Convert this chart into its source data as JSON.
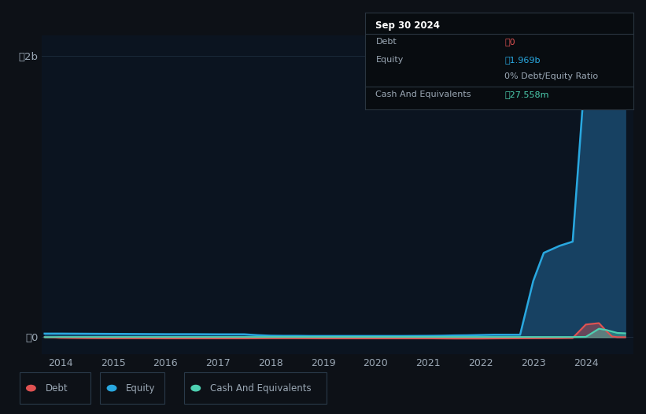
{
  "bg_color": "#0d1117",
  "plot_bg_color": "#0b1420",
  "grid_color": "#1e2d3d",
  "text_color": "#9ba8b5",
  "debt_color": "#e05252",
  "equity_color": "#29a8e0",
  "cash_color": "#4dd0b1",
  "equity_fill_color": "#1a4a6e",
  "ylim_min": -120000000.0,
  "ylim_max": 2150000000.0,
  "ytick_0_label": "⃴0",
  "ytick_2b_label": "⃴2b",
  "tooltip": {
    "date": "Sep 30 2024",
    "debt_label": "Debt",
    "debt_value": "⃴0",
    "equity_label": "Equity",
    "equity_value": "⃴1.969b",
    "ratio_value": "0% Debt/Equity Ratio",
    "cash_label": "Cash And Equivalents",
    "cash_value": "⃴27.558m"
  },
  "legend": [
    {
      "label": "Debt",
      "color": "#e05252"
    },
    {
      "label": "Equity",
      "color": "#29a8e0"
    },
    {
      "label": "Cash And Equivalents",
      "color": "#4dd0b1"
    }
  ],
  "equity_x": [
    2013.7,
    2014.0,
    2014.5,
    2015.0,
    2015.5,
    2016.0,
    2016.5,
    2017.0,
    2017.5,
    2017.75,
    2018.0,
    2018.25,
    2018.5,
    2018.75,
    2019.0,
    2019.5,
    2020.0,
    2020.5,
    2021.0,
    2021.25,
    2021.5,
    2021.75,
    2022.0,
    2022.25,
    2022.5,
    2022.75,
    2023.0,
    2023.1,
    2023.2,
    2023.5,
    2023.75,
    2024.0,
    2024.25,
    2024.5,
    2024.6,
    2024.75
  ],
  "equity_y": [
    25000000.0,
    25000000.0,
    24000000.0,
    23000000.0,
    22000000.0,
    21000000.0,
    21000000.0,
    20000000.0,
    20000000.0,
    14000000.0,
    10000000.0,
    9000000.0,
    9000000.0,
    8000000.0,
    8000000.0,
    8000000.0,
    8000000.0,
    8000000.0,
    9000000.0,
    10000000.0,
    12000000.0,
    13000000.0,
    15000000.0,
    17000000.0,
    17000000.0,
    17000000.0,
    400000000.0,
    500000000.0,
    600000000.0,
    650000000.0,
    680000000.0,
    1950000000.0,
    2050000000.0,
    1990000000.0,
    1975000000.0,
    1969000000.0
  ],
  "debt_x": [
    2013.7,
    2014.0,
    2014.5,
    2015.0,
    2015.5,
    2016.0,
    2016.5,
    2017.0,
    2017.5,
    2018.0,
    2018.5,
    2019.0,
    2019.5,
    2020.0,
    2020.5,
    2021.0,
    2021.5,
    2022.0,
    2022.5,
    2023.0,
    2023.5,
    2023.75,
    2024.0,
    2024.25,
    2024.4,
    2024.5,
    2024.6,
    2024.75
  ],
  "debt_y": [
    0,
    -5000000.0,
    -7000000.0,
    -8000000.0,
    -8000000.0,
    -9000000.0,
    -9000000.0,
    -9000000.0,
    -9000000.0,
    -8000000.0,
    -8000000.0,
    -9000000.0,
    -9000000.0,
    -9000000.0,
    -9000000.0,
    -9000000.0,
    -10000000.0,
    -10000000.0,
    -9000000.0,
    -8000000.0,
    -7000000.0,
    -6000000.0,
    90000000.0,
    100000000.0,
    40000000.0,
    5000000.0,
    0,
    0
  ],
  "cash_x": [
    2013.7,
    2014.0,
    2015.0,
    2016.0,
    2017.0,
    2018.0,
    2019.0,
    2020.0,
    2021.0,
    2022.0,
    2023.0,
    2023.75,
    2024.0,
    2024.25,
    2024.4,
    2024.5,
    2024.6,
    2024.75
  ],
  "cash_y": [
    0,
    1000000.0,
    1000000.0,
    1000000.0,
    1000000.0,
    1000000.0,
    1000000.0,
    1000000.0,
    1000000.0,
    1000000.0,
    1000000.0,
    1000000.0,
    2000000.0,
    60000000.0,
    50000000.0,
    40000000.0,
    30000000.0,
    27558000.0
  ]
}
